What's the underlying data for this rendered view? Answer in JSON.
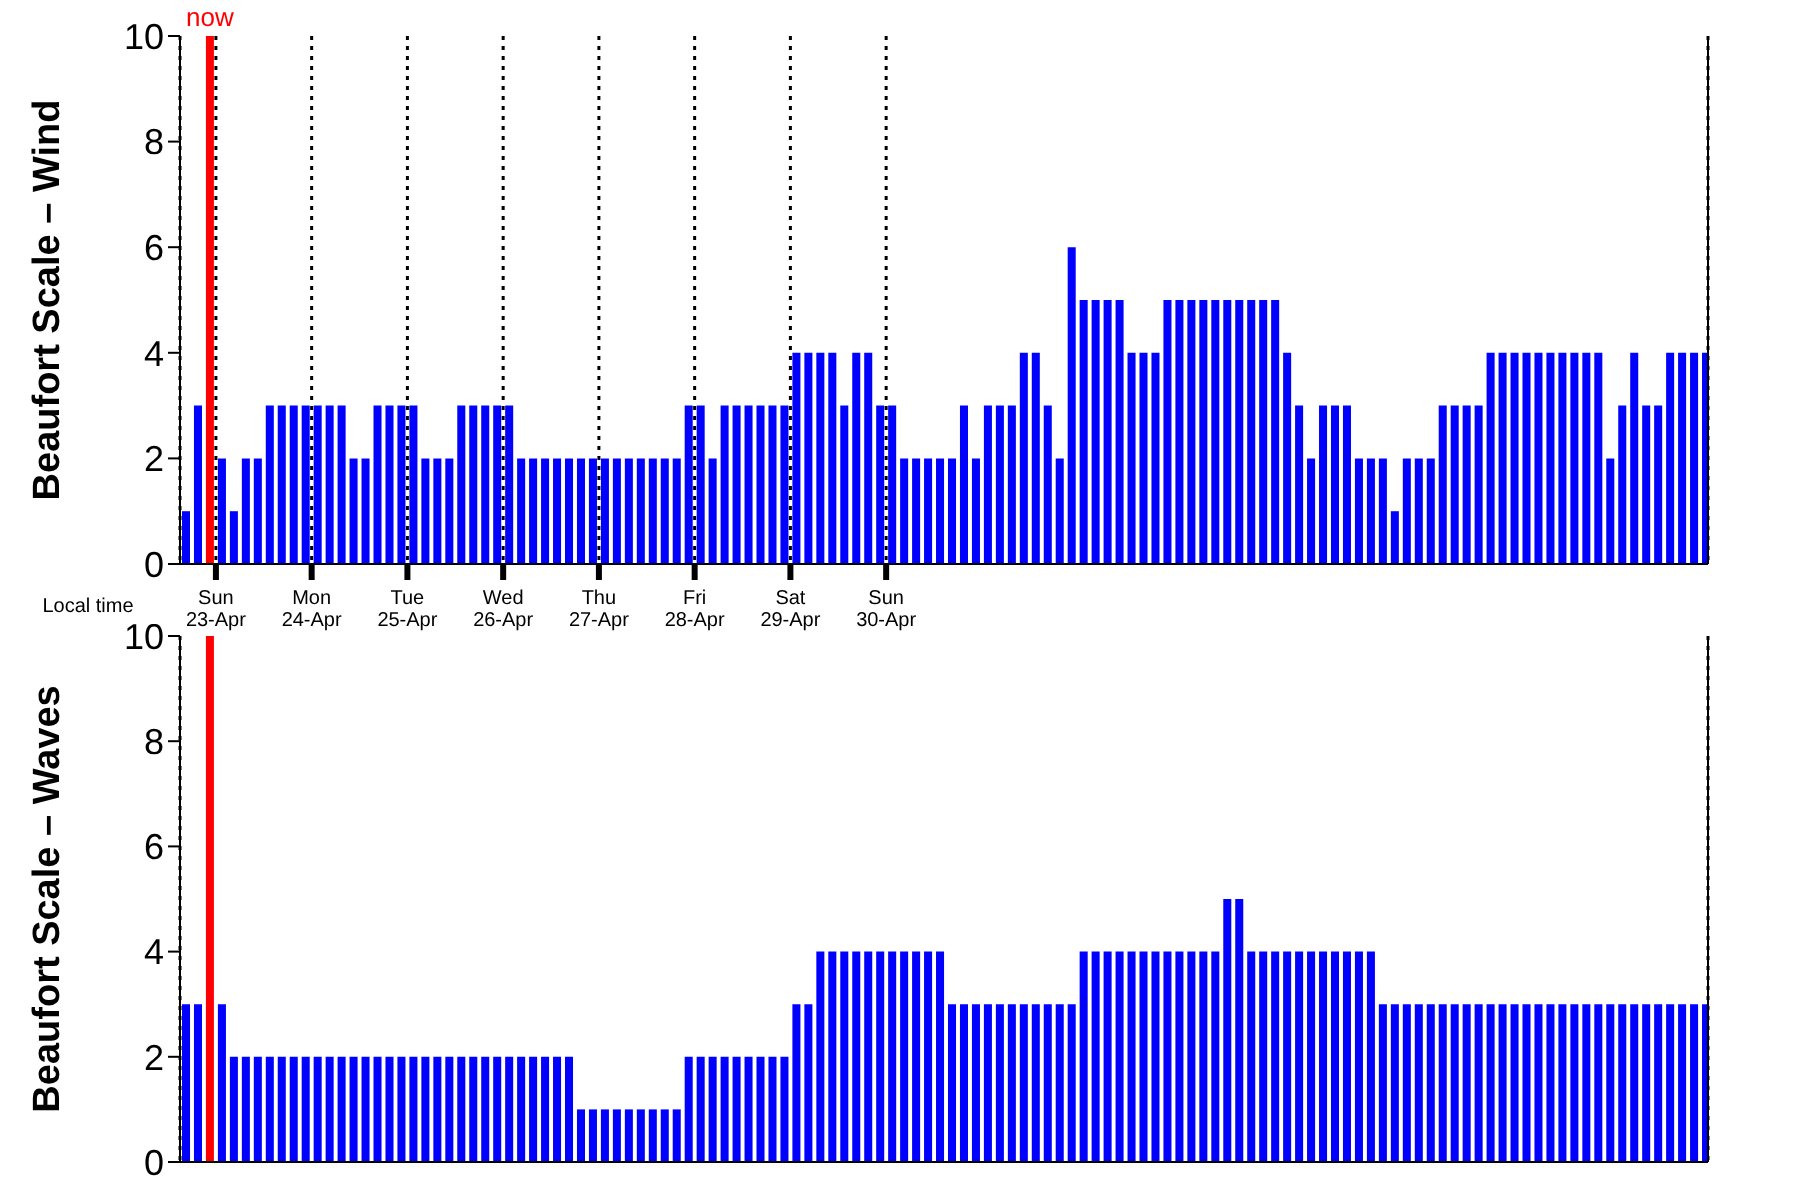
{
  "chart_data": [
    {
      "type": "bar",
      "ylabel": "Beaufort Scale – Wind",
      "xlabel": "Local time",
      "color": "#0000ff",
      "x": [
        "--04-22T16:30",
        "--04-22T19:30",
        "--04-22T22:30",
        "--04-23T01:30",
        "--04-23T04:30",
        "--04-23T07:30",
        "--04-23T10:30",
        "--04-23T13:30",
        "--04-23T16:30",
        "--04-23T19:30",
        "--04-23T22:30",
        "--04-24T01:30",
        "--04-24T04:30",
        "--04-24T07:30",
        "--04-24T10:30",
        "--04-24T13:30",
        "--04-24T16:30",
        "--04-24T19:30",
        "--04-24T22:30",
        "--04-25T01:30",
        "--04-25T04:30",
        "--04-25T07:30",
        "--04-25T10:30",
        "--04-25T13:30",
        "--04-25T16:30",
        "--04-25T19:30",
        "--04-25T22:30",
        "--04-26T01:30",
        "--04-26T04:30",
        "--04-26T07:30",
        "--04-26T10:30",
        "--04-26T13:30",
        "--04-26T16:30",
        "--04-26T19:30",
        "--04-26T22:30",
        "--04-27T01:30",
        "--04-27T04:30",
        "--04-27T07:30",
        "--04-27T10:30",
        "--04-27T13:30",
        "--04-27T16:30",
        "--04-27T19:30",
        "--04-27T22:30",
        "--04-28T01:30",
        "--04-28T04:30",
        "--04-28T07:30",
        "--04-28T10:30",
        "--04-28T13:30",
        "--04-28T16:30",
        "--04-28T19:30",
        "--04-28T22:30",
        "--04-29T01:30",
        "--04-29T04:30",
        "--04-29T07:30",
        "--04-29T10:30",
        "--04-29T13:30",
        "--04-29T16:30",
        "--04-29T19:30",
        "--04-29T22:30",
        "--04-30T01:30",
        "--04-30T04:30",
        "--04-30T07:30",
        "--04-30T10:30",
        "--04-30T13:30",
        "--04-30T16:30",
        "--04-30T19:30",
        "--04-30T22:30",
        "--05-01T01:30",
        "--05-01T04:30",
        "--05-01T07:30",
        "--05-01T10:30",
        "--05-01T13:30",
        "--05-01T16:30",
        "--05-01T19:30",
        "--05-01T22:30",
        "--05-02T01:30",
        "--05-02T04:30",
        "--05-02T07:30",
        "--05-02T10:30",
        "--05-02T13:30",
        "--05-02T16:30",
        "--05-02T19:30",
        "--05-02T22:30",
        "--05-03T01:30",
        "--05-03T04:30",
        "--05-03T07:30",
        "--05-03T10:30",
        "--05-03T13:30",
        "--05-03T16:30",
        "--05-03T19:30",
        "--05-03T22:30",
        "--05-04T01:30",
        "--05-04T04:30",
        "--05-04T07:30",
        "--05-04T10:30",
        "--05-04T13:30",
        "--05-04T16:30",
        "--05-04T19:30",
        "--05-04T22:30",
        "--05-05T01:30",
        "--05-05T04:30",
        "--05-05T07:30",
        "--05-05T10:30",
        "--05-05T13:30",
        "--05-05T16:30",
        "--05-05T19:30",
        "--05-05T22:30",
        "--05-06T01:30",
        "--05-06T04:30",
        "--05-06T07:30",
        "--05-06T10:30",
        "--05-06T13:30",
        "--05-06T16:30",
        "--05-06T19:30",
        "--05-06T22:30",
        "--05-07T01:30",
        "--05-07T04:30",
        "--05-07T07:30",
        "--05-07T10:30",
        "--05-07T13:30",
        "--05-07T16:30",
        "--05-07T19:30",
        "--05-07T22:30",
        "--05-08T01:30",
        "--05-08T04:30",
        "--05-08T07:30",
        "--05-08T10:30",
        "--05-08T13:30"
      ],
      "values": [
        1,
        3,
        null,
        2,
        1,
        2,
        2,
        3,
        3,
        3,
        3,
        3,
        3,
        3,
        2,
        2,
        3,
        3,
        3,
        3,
        2,
        2,
        2,
        3,
        3,
        3,
        3,
        3,
        2,
        2,
        2,
        2,
        2,
        2,
        2,
        2,
        2,
        2,
        2,
        2,
        2,
        2,
        3,
        3,
        2,
        3,
        3,
        3,
        3,
        3,
        3,
        4,
        4,
        4,
        4,
        3,
        4,
        4,
        3,
        3,
        2,
        2,
        2,
        2,
        2,
        3,
        2,
        3,
        3,
        3,
        4,
        4,
        3,
        2,
        6,
        5,
        5,
        5,
        5,
        4,
        4,
        4,
        5,
        5,
        5,
        5,
        5,
        5,
        5,
        5,
        5,
        5,
        4,
        3,
        2,
        3,
        3,
        3,
        2,
        2,
        2,
        1,
        2,
        2,
        2,
        3,
        3,
        3,
        3,
        4,
        4,
        4,
        4,
        4,
        4,
        4,
        4,
        4,
        4,
        2,
        3,
        4,
        3,
        3,
        4,
        4,
        4,
        4
      ],
      "xlim": [
        "--04-22T15:00",
        "--05-08T14:00"
      ],
      "xticks": [
        {
          "value": "--04-23",
          "label": "Sun 23-Apr"
        },
        {
          "value": "--04-24",
          "label": "Mon 24-Apr"
        },
        {
          "value": "--04-25",
          "label": "Tue 25-Apr"
        },
        {
          "value": "--04-26",
          "label": "Wed 26-Apr"
        },
        {
          "value": "--04-27",
          "label": "Thu 27-Apr"
        },
        {
          "value": "--04-28",
          "label": "Fri 28-Apr"
        },
        {
          "value": "--04-29",
          "label": "Sat 29-Apr"
        },
        {
          "value": "--04-30",
          "label": "Sun 30-Apr"
        }
      ],
      "ylim": [
        0,
        10
      ],
      "yticks": [
        0,
        2,
        4,
        6,
        8,
        10
      ],
      "grid": "x",
      "ref_lines": [
        {
          "axis": "x",
          "value": "--04-22T22:30",
          "label": "now",
          "color": "#ff0000"
        }
      ]
    },
    {
      "type": "bar",
      "ylabel": "Beaufort Scale – Waves",
      "color": "#0000ff",
      "x": [
        "--04-22T16:30",
        "--04-22T19:30",
        "--04-22T22:30",
        "--04-23T01:30",
        "--04-23T04:30",
        "--04-23T07:30",
        "--04-23T10:30",
        "--04-23T13:30",
        "--04-23T16:30",
        "--04-23T19:30",
        "--04-23T22:30",
        "--04-24T01:30",
        "--04-24T04:30",
        "--04-24T07:30",
        "--04-24T10:30",
        "--04-24T13:30",
        "--04-24T16:30",
        "--04-24T19:30",
        "--04-24T22:30",
        "--04-25T01:30",
        "--04-25T04:30",
        "--04-25T07:30",
        "--04-25T10:30",
        "--04-25T13:30",
        "--04-25T16:30",
        "--04-25T19:30",
        "--04-25T22:30",
        "--04-26T01:30",
        "--04-26T04:30",
        "--04-26T07:30",
        "--04-26T10:30",
        "--04-26T13:30",
        "--04-26T16:30",
        "--04-26T19:30",
        "--04-26T22:30",
        "--04-27T01:30",
        "--04-27T04:30",
        "--04-27T07:30",
        "--04-27T10:30",
        "--04-27T13:30",
        "--04-27T16:30",
        "--04-27T19:30",
        "--04-27T22:30",
        "--04-28T01:30",
        "--04-28T04:30",
        "--04-28T07:30",
        "--04-28T10:30",
        "--04-28T13:30",
        "--04-28T16:30",
        "--04-28T19:30",
        "--04-28T22:30",
        "--04-29T01:30",
        "--04-29T04:30",
        "--04-29T07:30",
        "--04-29T10:30",
        "--04-29T13:30",
        "--04-29T16:30",
        "--04-29T19:30",
        "--04-29T22:30",
        "--04-30T01:30",
        "--04-30T04:30",
        "--04-30T07:30",
        "--04-30T10:30",
        "--04-30T13:30",
        "--04-30T16:30",
        "--04-30T19:30",
        "--04-30T22:30",
        "--05-01T01:30",
        "--05-01T04:30",
        "--05-01T07:30",
        "--05-01T10:30",
        "--05-01T13:30",
        "--05-01T16:30",
        "--05-01T19:30",
        "--05-01T22:30",
        "--05-02T01:30",
        "--05-02T04:30",
        "--05-02T07:30",
        "--05-02T10:30",
        "--05-02T13:30",
        "--05-02T16:30",
        "--05-02T19:30",
        "--05-02T22:30",
        "--05-03T01:30",
        "--05-03T04:30",
        "--05-03T07:30",
        "--05-03T10:30",
        "--05-03T13:30",
        "--05-03T16:30",
        "--05-03T19:30",
        "--05-03T22:30",
        "--05-04T01:30",
        "--05-04T04:30",
        "--05-04T07:30",
        "--05-04T10:30",
        "--05-04T13:30",
        "--05-04T16:30",
        "--05-04T19:30",
        "--05-04T22:30",
        "--05-05T01:30",
        "--05-05T04:30",
        "--05-05T07:30",
        "--05-05T10:30",
        "--05-05T13:30",
        "--05-05T16:30",
        "--05-05T19:30",
        "--05-05T22:30",
        "--05-06T01:30",
        "--05-06T04:30",
        "--05-06T07:30",
        "--05-06T10:30",
        "--05-06T13:30",
        "--05-06T16:30",
        "--05-06T19:30",
        "--05-06T22:30",
        "--05-07T01:30",
        "--05-07T04:30",
        "--05-07T07:30",
        "--05-07T10:30",
        "--05-07T13:30",
        "--05-07T16:30",
        "--05-07T19:30",
        "--05-07T22:30",
        "--05-08T01:30",
        "--05-08T04:30",
        "--05-08T07:30",
        "--05-08T10:30",
        "--05-08T13:30"
      ],
      "values": [
        3,
        3,
        null,
        3,
        2,
        2,
        2,
        2,
        2,
        2,
        2,
        2,
        2,
        2,
        2,
        2,
        2,
        2,
        2,
        2,
        2,
        2,
        2,
        2,
        2,
        2,
        2,
        2,
        2,
        2,
        2,
        2,
        2,
        1,
        1,
        1,
        1,
        1,
        1,
        1,
        1,
        1,
        2,
        2,
        2,
        2,
        2,
        2,
        2,
        2,
        2,
        3,
        3,
        4,
        4,
        4,
        4,
        4,
        4,
        4,
        4,
        4,
        4,
        4,
        3,
        3,
        3,
        3,
        3,
        3,
        3,
        3,
        3,
        3,
        3,
        4,
        4,
        4,
        4,
        4,
        4,
        4,
        4,
        4,
        4,
        4,
        4,
        5,
        5,
        4,
        4,
        4,
        4,
        4,
        4,
        4,
        4,
        4,
        4,
        4,
        3,
        3,
        3,
        3,
        3,
        3,
        3,
        3,
        3,
        3,
        3,
        3,
        3,
        3,
        3,
        3,
        3,
        3,
        3,
        3,
        3,
        3,
        3,
        3,
        3,
        3,
        3,
        3
      ],
      "xlim": [
        "--04-22T15:00",
        "--05-08T14:00"
      ],
      "xticks": [
        {
          "value": "--04-23",
          "label": null
        },
        {
          "value": "--04-24",
          "label": null
        },
        {
          "value": "--04-25",
          "label": null
        },
        {
          "value": "--04-26",
          "label": null
        },
        {
          "value": "--04-27",
          "label": null
        },
        {
          "value": "--04-28",
          "label": null
        },
        {
          "value": "--04-29",
          "label": null
        },
        {
          "value": "--04-30",
          "label": null
        }
      ],
      "ylim": [
        0,
        10
      ],
      "yticks": [
        0,
        2,
        4,
        6,
        8,
        10
      ],
      "grid": "x",
      "tick_labels": "y",
      "ref_lines": [
        {
          "axis": "x",
          "value": "--04-22T22:30",
          "color": "#ff0000"
        }
      ]
    }
  ]
}
